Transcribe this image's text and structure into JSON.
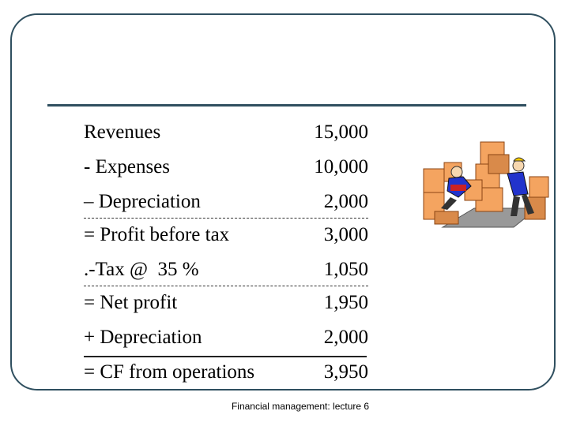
{
  "statement": {
    "rows": [
      {
        "label": "Revenues",
        "value": "15,000"
      },
      {
        "label": "- Expenses",
        "value": "10,000"
      },
      {
        "label": "– Depreciation",
        "value": "2,000"
      },
      {
        "label": "= Profit before tax",
        "value": "3,000"
      },
      {
        "label": ".-Tax @  35 %",
        "value": "1,050"
      },
      {
        "label": "= Net profit",
        "value": "1,950"
      },
      {
        "label": "+ Depreciation",
        "value": "2,000"
      },
      {
        "label": "= CF from operations",
        "value": "3,950"
      }
    ]
  },
  "footer": {
    "text": "Financial management: lecture 6"
  },
  "colors": {
    "frame": "#2f4f5f",
    "box": "#f4a460",
    "box_shade": "#d98a4a",
    "shirt_blue": "#2233cc"
  },
  "clipart": {
    "icon": "workers-moving-boxes-icon"
  }
}
